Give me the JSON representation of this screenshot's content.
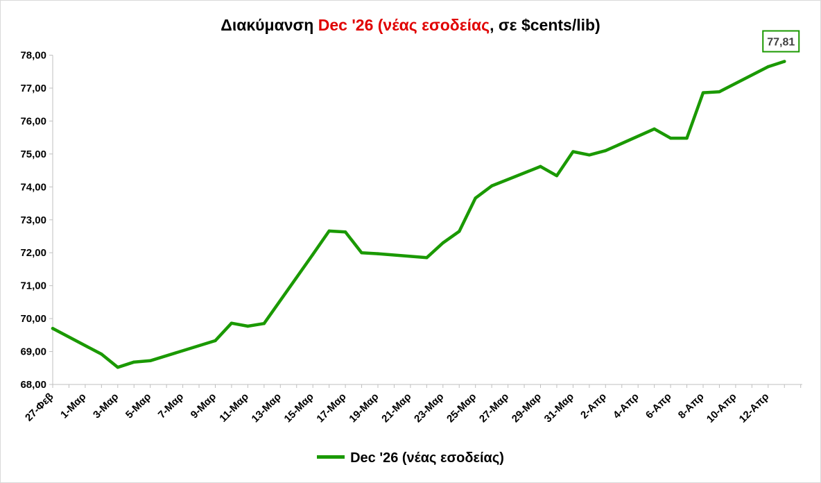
{
  "colors": {
    "line": "#1a9900",
    "title_highlight": "#e00000"
  },
  "chart_data": {
    "type": "line",
    "title_parts": [
      "Διακύμανση ",
      "Dec '26 (νέας εσοδείας",
      ", σε $cents/lib)"
    ],
    "xlabel": "",
    "ylabel": "",
    "ylim": [
      68,
      78
    ],
    "grid": false,
    "legend": "bottom",
    "yticks": [
      "68,00",
      "69,00",
      "70,00",
      "71,00",
      "72,00",
      "73,00",
      "74,00",
      "75,00",
      "76,00",
      "77,00",
      "78,00"
    ],
    "xticks": [
      "27-Φεβ",
      "1-Μαρ",
      "3-Μαρ",
      "5-Μαρ",
      "7-Μαρ",
      "9-Μαρ",
      "11-Μαρ",
      "13-Μαρ",
      "15-Μαρ",
      "17-Μαρ",
      "19-Μαρ",
      "21-Μαρ",
      "23-Μαρ",
      "25-Μαρ",
      "27-Μαρ",
      "29-Μαρ",
      "31-Μαρ",
      "2-Απρ",
      "4-Απρ",
      "6-Απρ",
      "8-Απρ",
      "10-Απρ",
      "12-Απρ"
    ],
    "x_days": [
      0,
      3,
      4,
      5,
      6,
      10,
      11,
      12,
      13,
      16,
      17,
      18,
      19,
      20,
      23,
      24,
      25,
      26,
      27,
      30,
      31,
      32,
      33,
      34,
      37,
      38,
      39,
      40,
      41,
      44,
      45
    ],
    "series": [
      {
        "name": "Dec '26 (νέας εσοδείας)",
        "values": [
          69.7,
          68.92,
          68.52,
          68.68,
          68.72,
          69.33,
          69.86,
          69.77,
          69.85,
          71.95,
          72.66,
          72.63,
          72.0,
          71.97,
          71.85,
          72.3,
          72.65,
          73.66,
          74.03,
          74.62,
          74.34,
          75.07,
          74.97,
          75.1,
          75.76,
          75.48,
          75.48,
          76.86,
          76.89,
          77.65,
          77.81
        ]
      }
    ],
    "last_value_label": "77,81"
  }
}
